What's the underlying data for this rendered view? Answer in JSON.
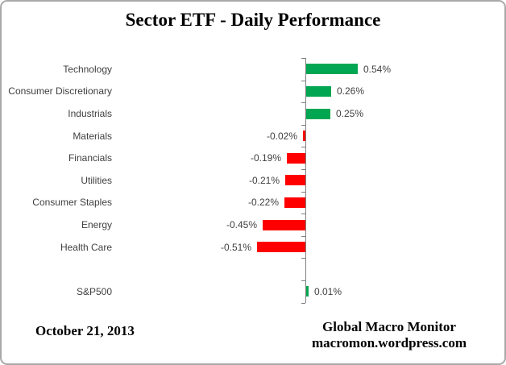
{
  "title": "Sector ETF - Daily Performance",
  "chart_data": {
    "type": "bar",
    "orientation": "horizontal",
    "unit": "%",
    "title": "Sector ETF - Daily Performance",
    "categories": [
      "Technology",
      "Consumer Discretionary",
      "Industrials",
      "Materials",
      "Financials",
      "Utilities",
      "Consumer Staples",
      "Energy",
      "Health Care",
      "S&P500"
    ],
    "values": [
      0.54,
      0.26,
      0.25,
      -0.02,
      -0.19,
      -0.21,
      -0.22,
      -0.45,
      -0.51,
      0.01
    ],
    "value_labels": [
      "0.54%",
      "0.26%",
      "0.25%",
      "-0.02%",
      "-0.19%",
      "-0.21%",
      "-0.22%",
      "-0.45%",
      "-0.51%",
      "0.01%"
    ],
    "gap_slot_before_last": true,
    "xlim": [
      -2,
      2
    ],
    "grid": false,
    "legend": false,
    "xlabel": "",
    "ylabel": "",
    "colors": {
      "positive": "#00a651",
      "negative": "#fe0000",
      "axis": "#808080",
      "label_text": "#3f3f3f"
    }
  },
  "footer": {
    "date": "October 21, 2013",
    "brand_line1": "Global Macro Monitor",
    "brand_line2": "macromon.wordpress.com"
  }
}
